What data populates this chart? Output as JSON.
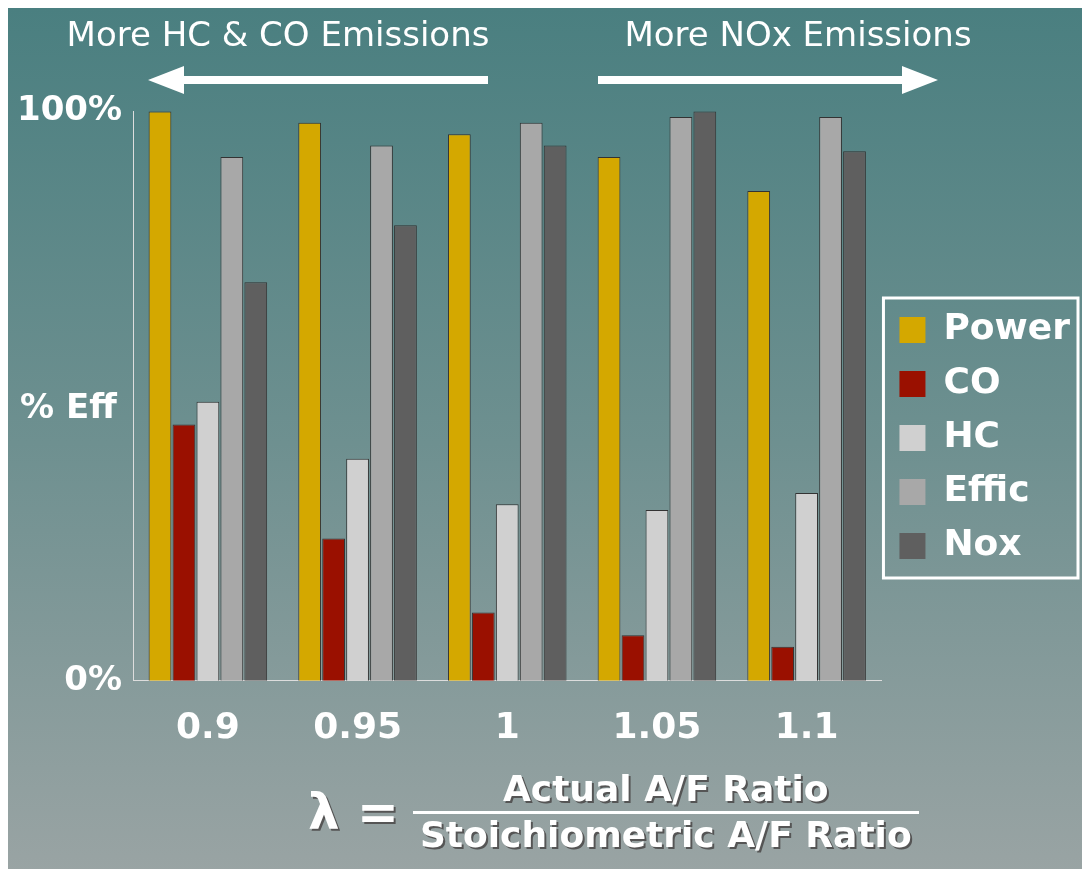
{
  "chart_data": {
    "type": "bar",
    "xlabel": "λ =",
    "ylabel": "% Eff",
    "categories": [
      "0.9",
      "0.95",
      "1",
      "1.05",
      "1.1"
    ],
    "series": [
      {
        "name": "Power",
        "color": "#d4a800",
        "values": [
          100,
          98,
          96,
          92,
          86
        ]
      },
      {
        "name": "CO",
        "color": "#9a1000",
        "values": [
          45,
          25,
          12,
          8,
          6
        ]
      },
      {
        "name": "HC",
        "color": "#d0d0d0",
        "values": [
          49,
          39,
          31,
          30,
          33
        ]
      },
      {
        "name": "Effic",
        "color": "#a8a8a8",
        "values": [
          92,
          94,
          98,
          99,
          99
        ]
      },
      {
        "name": "Nox",
        "color": "#5f5f5f",
        "values": [
          70,
          80,
          94,
          100,
          93
        ]
      }
    ],
    "ylim": [
      0,
      100
    ],
    "yticks": [
      {
        "value": 0,
        "label": "0%"
      },
      {
        "value": 100,
        "label": "100%"
      }
    ],
    "grid": false,
    "legend": "right",
    "annotations": [
      "More HC & CO Emissions",
      "More NOx Emissions",
      "Actual A/F Ratio",
      "Stoichiometric A/F Ratio"
    ]
  }
}
